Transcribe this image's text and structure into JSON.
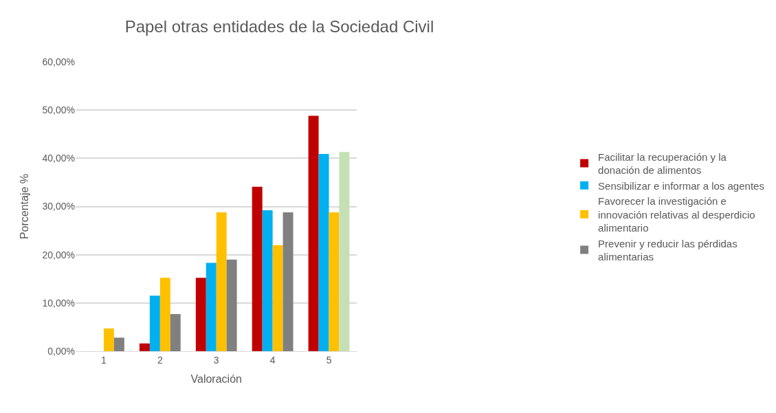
{
  "chart_data": {
    "type": "bar",
    "title": "Papel otras entidades de la Sociedad Civil",
    "xlabel": "Valoración",
    "ylabel": "Porcentaje %",
    "categories": [
      "1",
      "2",
      "3",
      "4",
      "5"
    ],
    "series": [
      {
        "name": "Facilitar la recuperación y la donación de alimentos",
        "color": "#c00000",
        "values": [
          0,
          1.6,
          15.2,
          34.1,
          48.8
        ]
      },
      {
        "name": "Sensibilizar e informar a los agentes",
        "color": "#00b0f0",
        "values": [
          0,
          11.5,
          18.3,
          29.2,
          40.9
        ]
      },
      {
        "name": "Favorecer la investigación e innovación relativas al desperdicio alimentario",
        "color": "#ffc000",
        "values": [
          4.7,
          15.2,
          28.8,
          22.0,
          28.8
        ]
      },
      {
        "name": "Prevenir y reducir las pérdidas alimentarias",
        "color": "#808080",
        "colors": [
          "#808080",
          "#808080",
          "#808080",
          "#808080",
          "#c5e0b4"
        ],
        "values": [
          2.8,
          7.7,
          19.0,
          28.8,
          41.3
        ]
      }
    ],
    "ylim": [
      0,
      60
    ],
    "yticks": [
      {
        "value": 0,
        "label": "0,00%"
      },
      {
        "value": 10,
        "label": "10,00%"
      },
      {
        "value": 20,
        "label": "20,00%"
      },
      {
        "value": 30,
        "label": "30,00%"
      },
      {
        "value": 40,
        "label": "40,00%"
      },
      {
        "value": 50,
        "label": "50,00%"
      },
      {
        "value": 60,
        "label": "60,00%"
      }
    ],
    "grid": "y",
    "legend": "right"
  }
}
